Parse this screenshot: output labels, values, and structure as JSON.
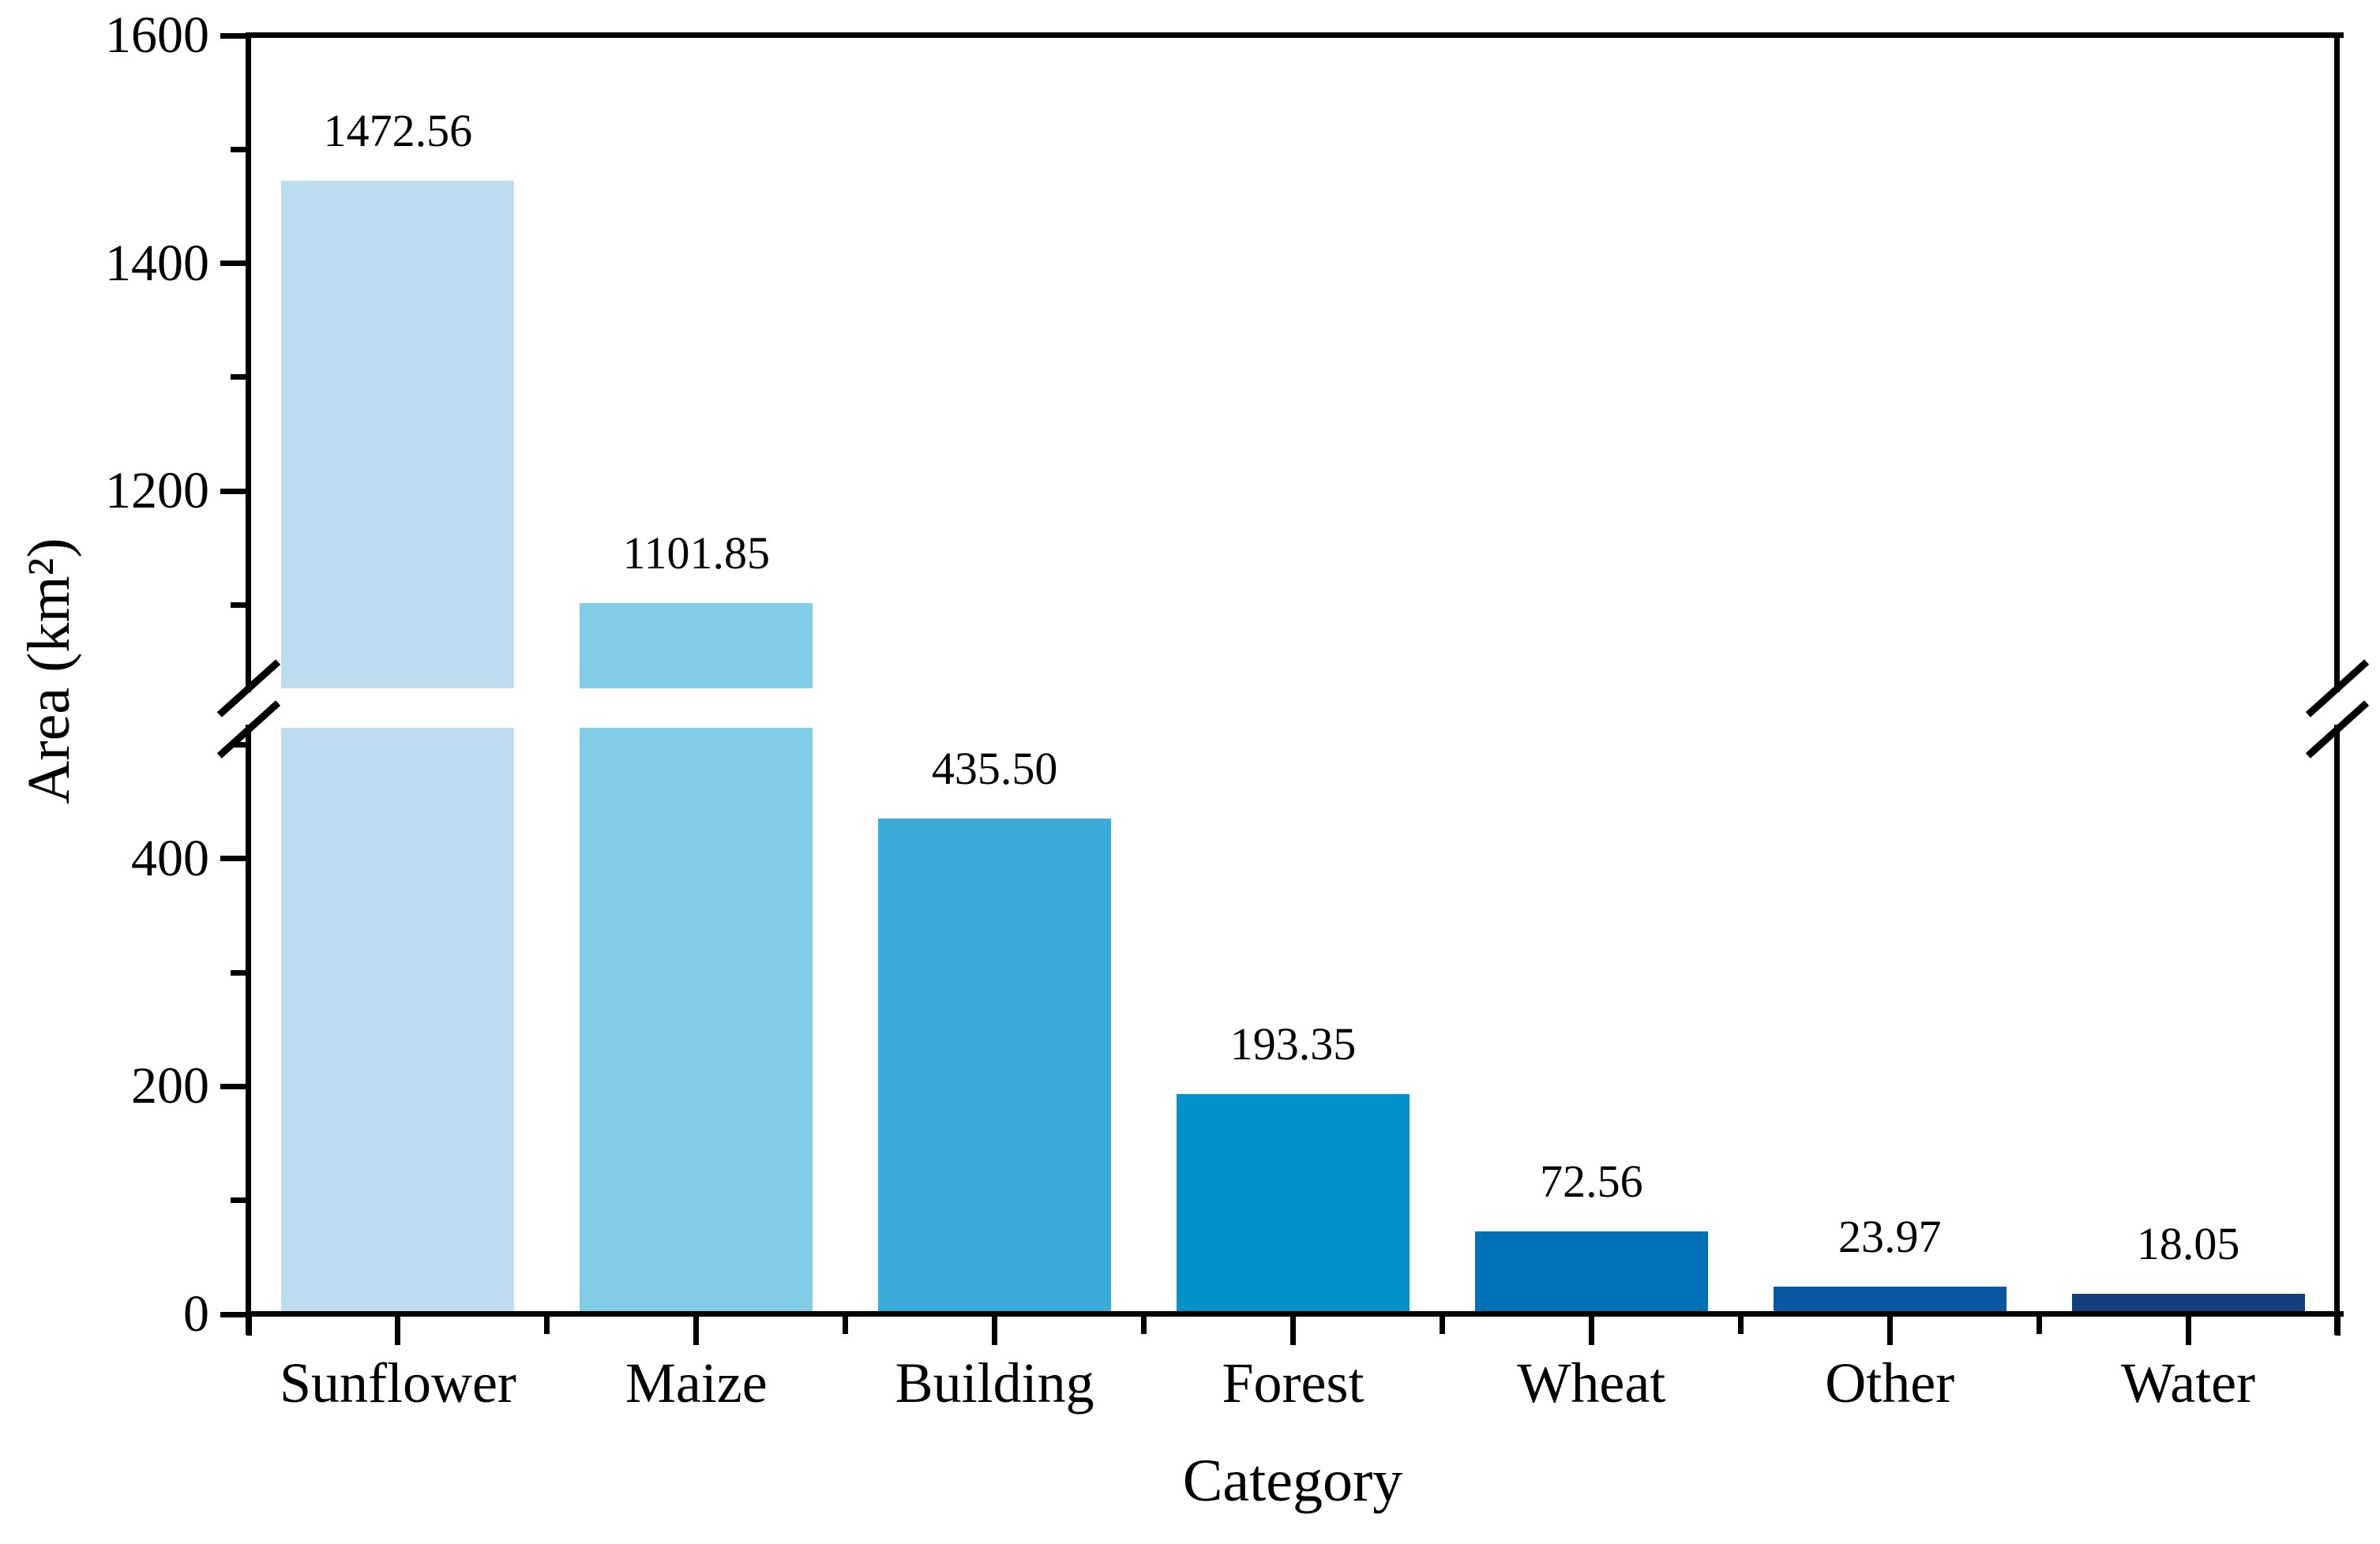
{
  "figure": {
    "background": "#ffffff",
    "axis_color": "#000000",
    "text_color": "#000000"
  },
  "chart_data": {
    "type": "bar",
    "title": "",
    "xlabel": "Category",
    "ylabel": "Area (km²)",
    "categories": [
      "Sunflower",
      "Maize",
      "Building",
      "Forest",
      "Wheat",
      "Other",
      "Water"
    ],
    "values": [
      1472.56,
      1101.85,
      435.5,
      193.35,
      72.56,
      23.97,
      18.05
    ],
    "value_labels": [
      "1472.56",
      "1101.85",
      "435.50",
      "193.35",
      "72.56",
      "23.97",
      "18.05"
    ],
    "bar_colors": [
      "#bfddf0",
      "#81cde8",
      "#3aabdb",
      "#0293cb",
      "#0071b7",
      "#0a57a4",
      "#153e7d"
    ],
    "ylim": [
      0,
      1600
    ],
    "y_major_ticks": [
      0,
      200,
      400,
      1200,
      1400,
      1600
    ],
    "y_major_tick_labels": [
      "0",
      "200",
      "400",
      "1200",
      "1400",
      "1600"
    ],
    "y_minor_ticks": [
      100,
      300,
      500,
      1100,
      1300,
      1500
    ],
    "axis_break": {
      "enabled": true,
      "lower_segment_max": 515,
      "upper_segment_min": 1027,
      "marker": "diagonal-slashes"
    },
    "grid": false,
    "legend": null
  }
}
